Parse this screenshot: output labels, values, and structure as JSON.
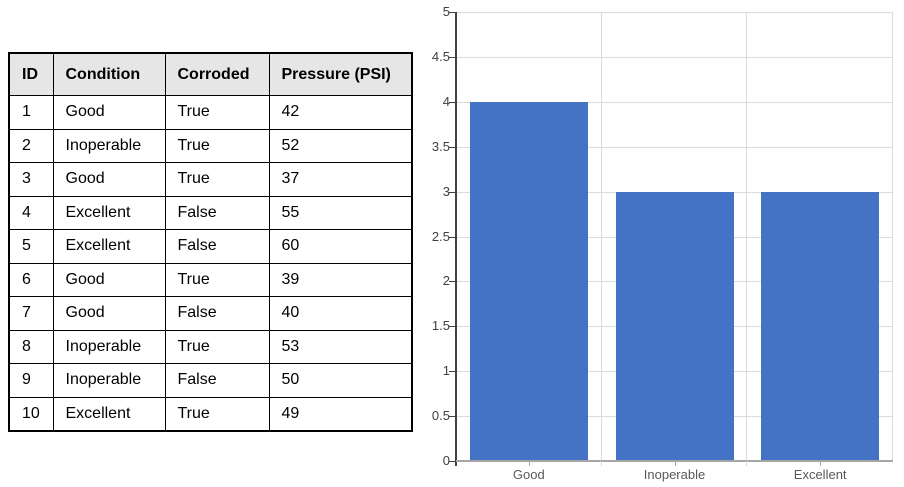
{
  "chart_data": [
    {
      "type": "table",
      "columns": [
        "ID",
        "Condition",
        "Corroded",
        "Pressure (PSI)"
      ],
      "rows": [
        [
          "1",
          "Good",
          "True",
          "42"
        ],
        [
          "2",
          "Inoperable",
          "True",
          "52"
        ],
        [
          "3",
          "Good",
          "True",
          "37"
        ],
        [
          "4",
          "Excellent",
          "False",
          "55"
        ],
        [
          "5",
          "Excellent",
          "False",
          "60"
        ],
        [
          "6",
          "Good",
          "True",
          "39"
        ],
        [
          "7",
          "Good",
          "False",
          "40"
        ],
        [
          "8",
          "Inoperable",
          "True",
          "53"
        ],
        [
          "9",
          "Inoperable",
          "False",
          "50"
        ],
        [
          "10",
          "Excellent",
          "True",
          "49"
        ]
      ],
      "header_bg": "#E7E6E6",
      "border_color": "#000000",
      "text_color": "#000000"
    },
    {
      "type": "bar",
      "categories": [
        "Good",
        "Inoperable",
        "Excellent"
      ],
      "values": [
        4,
        3,
        3
      ],
      "title": "",
      "xlabel": "",
      "ylabel": "",
      "ylim": [
        0,
        5
      ],
      "ytick_step": 0.5,
      "ytick_labels": [
        "5",
        "4.5",
        "4",
        "3.5",
        "3",
        "2.5",
        "2",
        "1.5",
        "1",
        "0.5",
        "0"
      ],
      "grid": true,
      "legend": false,
      "bar_color": "#4472C4",
      "gridline_color": "#DBDBDB",
      "yaxis_color": "#404040",
      "xaxis_color": "#A6A6A6",
      "ylabel_color": "#404040",
      "xlabel_color": "#595959"
    }
  ]
}
